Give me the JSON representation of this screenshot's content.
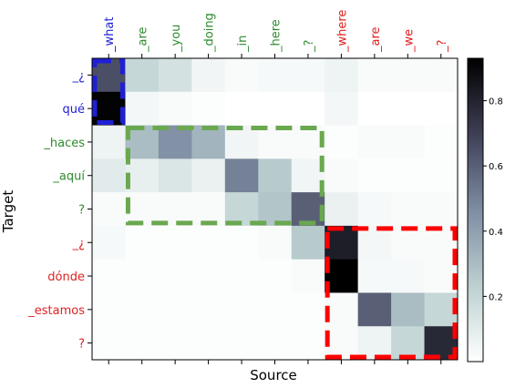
{
  "chart_data": {
    "type": "heatmap",
    "xlabel": "Source",
    "ylabel": "Target",
    "x_tokens": [
      {
        "text": "_what",
        "color": "#1f1fd6"
      },
      {
        "text": "_are",
        "color": "#2e8b2e"
      },
      {
        "text": "_you",
        "color": "#2e8b2e"
      },
      {
        "text": "_doing",
        "color": "#2e8b2e"
      },
      {
        "text": "_in",
        "color": "#2e8b2e"
      },
      {
        "text": "_here",
        "color": "#2e8b2e"
      },
      {
        "text": "_?",
        "color": "#2e8b2e"
      },
      {
        "text": "_where",
        "color": "#e02020"
      },
      {
        "text": "_are",
        "color": "#e02020"
      },
      {
        "text": "_we",
        "color": "#e02020"
      },
      {
        "text": "_?",
        "color": "#e02020"
      }
    ],
    "y_tokens": [
      {
        "text": "_¿",
        "color": "#1f1fd6"
      },
      {
        "text": "qué",
        "color": "#1f1fd6"
      },
      {
        "text": "_haces",
        "color": "#2e8b2e"
      },
      {
        "text": "_aquí",
        "color": "#2e8b2e"
      },
      {
        "text": "?",
        "color": "#2e8b2e"
      },
      {
        "text": "_¿",
        "color": "#e02020"
      },
      {
        "text": "dónde",
        "color": "#e02020"
      },
      {
        "text": "_estamos",
        "color": "#e02020"
      },
      {
        "text": "?",
        "color": "#e02020"
      }
    ],
    "values": [
      [
        0.65,
        0.2,
        0.15,
        0.05,
        0.02,
        0.03,
        0.03,
        0.06,
        0.02,
        0.02,
        0.02
      ],
      [
        0.92,
        0.04,
        0.02,
        0.01,
        0.0,
        0.0,
        0.0,
        0.04,
        0.0,
        0.0,
        0.0
      ],
      [
        0.06,
        0.3,
        0.45,
        0.33,
        0.05,
        0.02,
        0.02,
        0.01,
        0.02,
        0.02,
        0.01
      ],
      [
        0.1,
        0.08,
        0.13,
        0.07,
        0.5,
        0.25,
        0.05,
        0.02,
        0.01,
        0.01,
        0.01
      ],
      [
        0.02,
        0.02,
        0.02,
        0.02,
        0.2,
        0.27,
        0.6,
        0.07,
        0.03,
        0.02,
        0.02
      ],
      [
        0.03,
        0.01,
        0.01,
        0.01,
        0.01,
        0.02,
        0.25,
        0.82,
        0.04,
        0.02,
        0.02
      ],
      [
        0.01,
        0.01,
        0.01,
        0.01,
        0.01,
        0.01,
        0.02,
        0.93,
        0.03,
        0.03,
        0.02
      ],
      [
        0.01,
        0.01,
        0.01,
        0.01,
        0.01,
        0.01,
        0.01,
        0.02,
        0.6,
        0.3,
        0.2
      ],
      [
        0.01,
        0.01,
        0.01,
        0.01,
        0.01,
        0.01,
        0.01,
        0.02,
        0.06,
        0.2,
        0.78
      ]
    ],
    "colorbar": {
      "min": 0,
      "max": 0.93,
      "ticks": [
        "0.2",
        "0.4",
        "0.6",
        "0.8"
      ],
      "tick_values": [
        0.2,
        0.4,
        0.6,
        0.8
      ]
    },
    "highlight_boxes": [
      {
        "color": "#1f1fd6",
        "rows": [
          0,
          1
        ],
        "cols": [
          0,
          0
        ]
      },
      {
        "color": "#6aa84f",
        "rows": [
          2,
          4
        ],
        "cols": [
          1,
          6
        ]
      },
      {
        "color": "#ff0000",
        "rows": [
          5,
          8
        ],
        "cols": [
          7,
          10
        ]
      }
    ]
  }
}
